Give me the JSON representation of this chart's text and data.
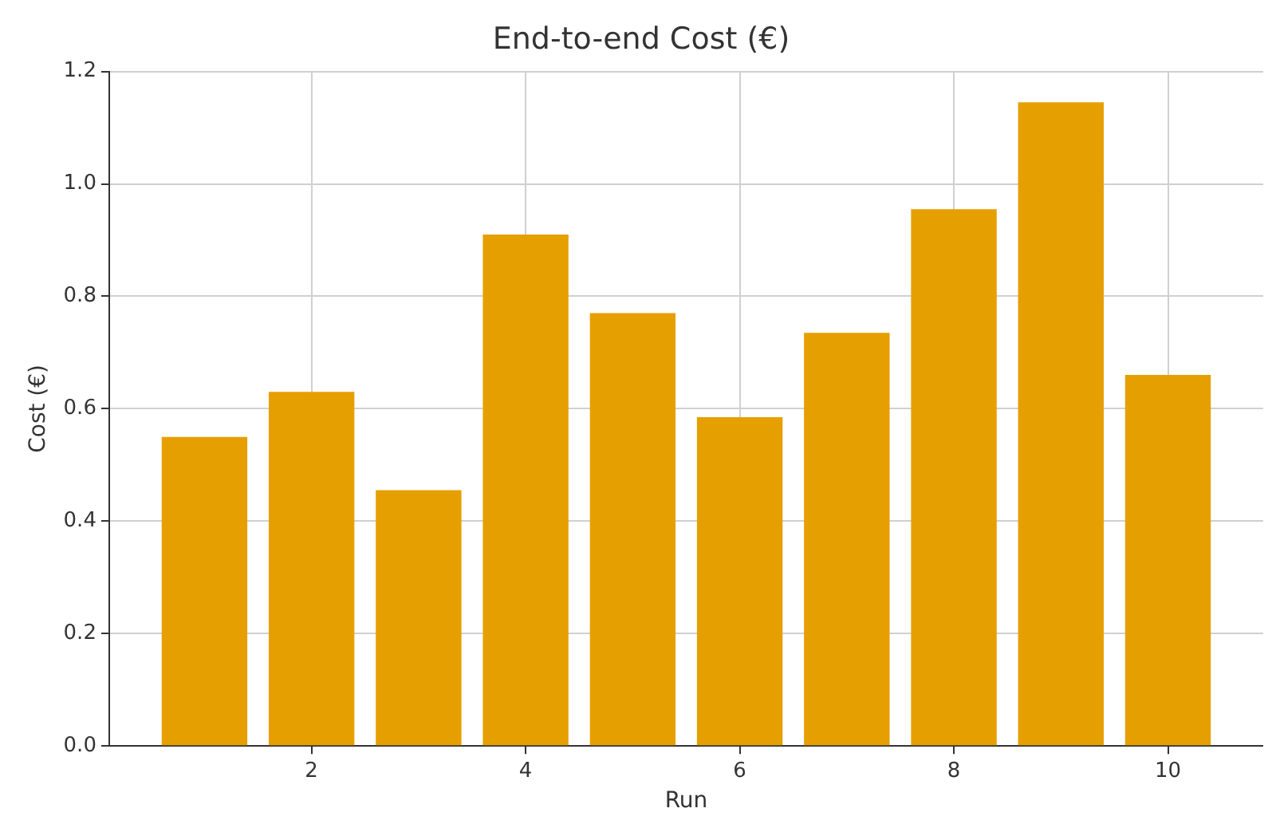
{
  "chart_data": {
    "type": "bar",
    "title": "End-to-end Cost (€)",
    "xlabel": "Run",
    "ylabel": "Cost (€)",
    "x": [
      1,
      2,
      3,
      4,
      5,
      6,
      7,
      8,
      9,
      10
    ],
    "values": [
      0.55,
      0.63,
      0.455,
      0.91,
      0.77,
      0.585,
      0.735,
      0.955,
      1.145,
      0.66
    ],
    "color": "#e69f00",
    "xlim": [
      0.11,
      10.89
    ],
    "xticks": [
      2,
      4,
      6,
      8,
      10
    ],
    "ylim": [
      0,
      1.2
    ],
    "yticks": [
      {
        "value": 0,
        "label": "0.0"
      },
      0.2,
      0.4,
      0.6,
      0.8,
      {
        "value": 1,
        "label": "1.0"
      },
      1.2
    ],
    "grid": true,
    "legend": false
  }
}
